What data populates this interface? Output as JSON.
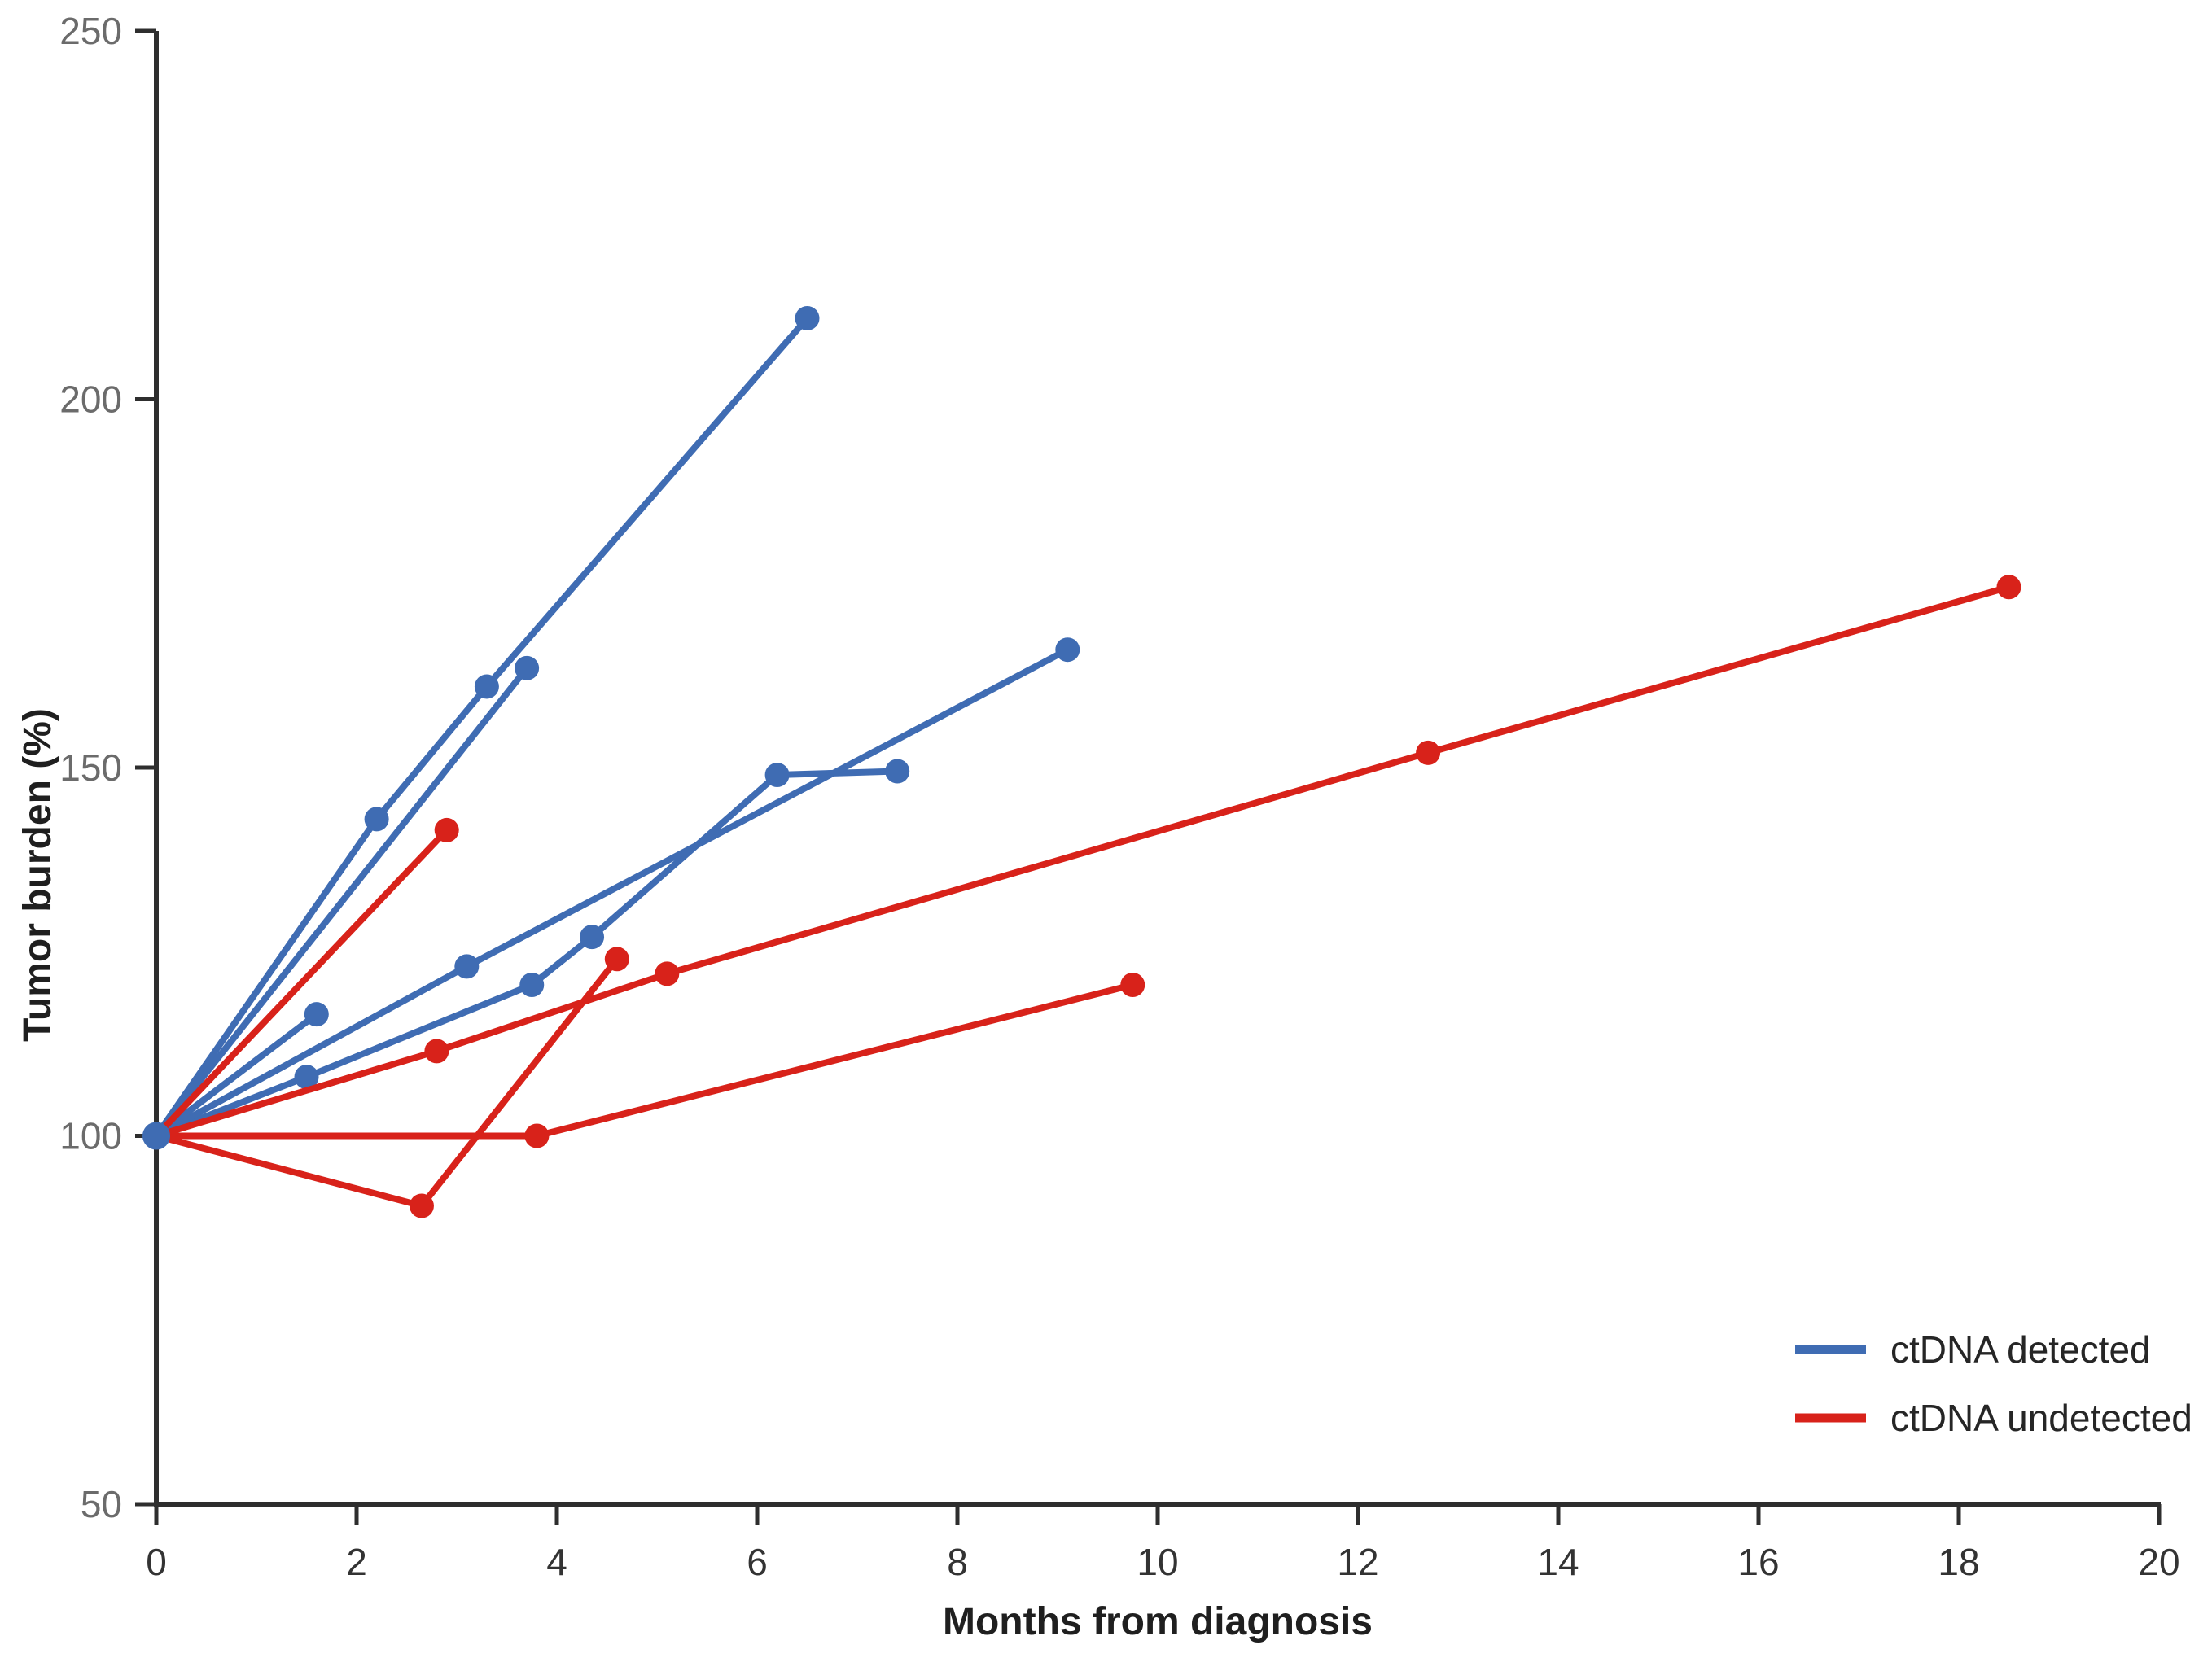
{
  "figure": {
    "background": "#ffffff",
    "legend": {
      "items": [
        {
          "label": "ctDNA detected",
          "color": "#3F6CB3"
        },
        {
          "label": "ctDNA undetected",
          "color": "#D8221A"
        }
      ]
    }
  },
  "chart_data": {
    "type": "line",
    "title": "",
    "xlabel": "Months from diagnosis",
    "ylabel": "Tumor burden (%)",
    "xlim": [
      0,
      20
    ],
    "ylim": [
      50,
      250
    ],
    "x_ticks": [
      0,
      2,
      4,
      6,
      8,
      10,
      12,
      14,
      16,
      18,
      20
    ],
    "y_ticks": [
      50,
      100,
      150,
      200,
      250
    ],
    "grid": false,
    "legend_position": "lower right",
    "axis_color": "#2e2e2e",
    "y_tick_label_color": "#6b6b6b",
    "x_tick_label_color": "#333333",
    "marker": "circle",
    "series": [
      {
        "name": "ctDNA detected",
        "color": "#3F6CB3",
        "lines": [
          [
            [
              0,
              100
            ],
            [
              2.2,
              143
            ],
            [
              3.3,
              161
            ],
            [
              6.5,
              211
            ]
          ],
          [
            [
              0,
              100
            ],
            [
              3.7,
              163.5
            ]
          ],
          [
            [
              0,
              100
            ],
            [
              1.5,
              108
            ],
            [
              3.75,
              120.5
            ],
            [
              4.35,
              127
            ],
            [
              6.2,
              149
            ],
            [
              7.4,
              149.5
            ]
          ],
          [
            [
              0,
              100
            ],
            [
              3.1,
              123
            ],
            [
              9.1,
              166
            ]
          ],
          [
            [
              0,
              100
            ],
            [
              1.6,
              116.5
            ]
          ]
        ]
      },
      {
        "name": "ctDNA undetected",
        "color": "#D8221A",
        "lines": [
          [
            [
              0,
              100
            ],
            [
              2.9,
              141.5
            ]
          ],
          [
            [
              0,
              100
            ],
            [
              2.8,
              111.5
            ],
            [
              5.1,
              122
            ],
            [
              12.7,
              152
            ],
            [
              18.5,
              174.5
            ]
          ],
          [
            [
              0,
              100
            ],
            [
              3.8,
              100
            ],
            [
              9.75,
              120.5
            ]
          ],
          [
            [
              0,
              100
            ],
            [
              2.65,
              90.5
            ],
            [
              4.6,
              124
            ]
          ]
        ]
      }
    ]
  }
}
